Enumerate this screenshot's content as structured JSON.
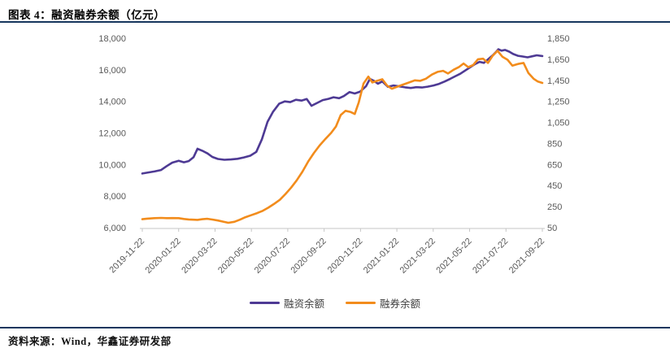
{
  "page": {
    "title": "图表 4：融资融券余额（亿元）",
    "source": "资料来源：Wind，华鑫证券研发部",
    "accent_color": "#17375E"
  },
  "chart_data": {
    "type": "line",
    "title": "融资融券余额（亿元）",
    "grid": false,
    "legend_position": "bottom",
    "axis_label_color": "#595959",
    "axis_line_color": "#C6C6C6",
    "x_tick_labels": [
      "2019-11-22",
      "2020-01-22",
      "2020-03-22",
      "2020-05-22",
      "2020-07-22",
      "2020-09-22",
      "2020-11-22",
      "2021-01-22",
      "2021-03-22",
      "2021-05-22",
      "2021-07-22",
      "2021-09-22"
    ],
    "left_axis": {
      "min": 6000,
      "max": 18000,
      "step": 2000,
      "tick_labels": [
        "18,000",
        "16,000",
        "14,000",
        "12,000",
        "10,000",
        "8,000",
        "6,000"
      ]
    },
    "right_axis": {
      "min": 50,
      "max": 1850,
      "step": 200,
      "tick_labels": [
        "1,850",
        "1,650",
        "1,450",
        "1,250",
        "1,050",
        "850",
        "650",
        "450",
        "250",
        "50"
      ]
    },
    "series": [
      {
        "name": "融资余额",
        "axis": "left",
        "color": "#4E3A94",
        "points": [
          [
            0.0,
            9430
          ],
          [
            0.012,
            9480
          ],
          [
            0.03,
            9560
          ],
          [
            0.047,
            9650
          ],
          [
            0.061,
            9900
          ],
          [
            0.075,
            10120
          ],
          [
            0.091,
            10240
          ],
          [
            0.104,
            10140
          ],
          [
            0.116,
            10220
          ],
          [
            0.128,
            10460
          ],
          [
            0.138,
            11000
          ],
          [
            0.15,
            10870
          ],
          [
            0.163,
            10700
          ],
          [
            0.175,
            10480
          ],
          [
            0.189,
            10350
          ],
          [
            0.205,
            10300
          ],
          [
            0.222,
            10320
          ],
          [
            0.238,
            10360
          ],
          [
            0.254,
            10450
          ],
          [
            0.27,
            10560
          ],
          [
            0.285,
            10800
          ],
          [
            0.299,
            11600
          ],
          [
            0.313,
            12700
          ],
          [
            0.327,
            13350
          ],
          [
            0.342,
            13850
          ],
          [
            0.356,
            14000
          ],
          [
            0.37,
            13950
          ],
          [
            0.384,
            14100
          ],
          [
            0.398,
            14050
          ],
          [
            0.411,
            14150
          ],
          [
            0.423,
            13720
          ],
          [
            0.437,
            13900
          ],
          [
            0.451,
            14080
          ],
          [
            0.465,
            14160
          ],
          [
            0.478,
            14260
          ],
          [
            0.492,
            14200
          ],
          [
            0.504,
            14340
          ],
          [
            0.518,
            14590
          ],
          [
            0.531,
            14500
          ],
          [
            0.545,
            14620
          ],
          [
            0.559,
            14950
          ],
          [
            0.569,
            15420
          ],
          [
            0.579,
            15300
          ],
          [
            0.589,
            15120
          ],
          [
            0.6,
            15260
          ],
          [
            0.614,
            14920
          ],
          [
            0.628,
            15010
          ],
          [
            0.642,
            14950
          ],
          [
            0.657,
            14890
          ],
          [
            0.671,
            14850
          ],
          [
            0.685,
            14900
          ],
          [
            0.699,
            14880
          ],
          [
            0.713,
            14930
          ],
          [
            0.728,
            15010
          ],
          [
            0.742,
            15110
          ],
          [
            0.756,
            15260
          ],
          [
            0.77,
            15430
          ],
          [
            0.783,
            15600
          ],
          [
            0.795,
            15750
          ],
          [
            0.807,
            15950
          ],
          [
            0.819,
            16150
          ],
          [
            0.831,
            16350
          ],
          [
            0.843,
            16500
          ],
          [
            0.854,
            16440
          ],
          [
            0.866,
            16700
          ],
          [
            0.876,
            16920
          ],
          [
            0.884,
            17120
          ],
          [
            0.89,
            17300
          ],
          [
            0.898,
            17210
          ],
          [
            0.907,
            17260
          ],
          [
            0.917,
            17150
          ],
          [
            0.927,
            17000
          ],
          [
            0.939,
            16890
          ],
          [
            0.951,
            16840
          ],
          [
            0.963,
            16790
          ],
          [
            0.974,
            16850
          ],
          [
            0.986,
            16920
          ],
          [
            1.0,
            16870
          ]
        ]
      },
      {
        "name": "融券余额",
        "axis": "right",
        "color": "#F28C1C",
        "points": [
          [
            0.0,
            130
          ],
          [
            0.012,
            136
          ],
          [
            0.03,
            140
          ],
          [
            0.047,
            143
          ],
          [
            0.061,
            140
          ],
          [
            0.075,
            141
          ],
          [
            0.091,
            140
          ],
          [
            0.104,
            133
          ],
          [
            0.116,
            128
          ],
          [
            0.128,
            126
          ],
          [
            0.138,
            124
          ],
          [
            0.15,
            130
          ],
          [
            0.163,
            134
          ],
          [
            0.175,
            127
          ],
          [
            0.189,
            118
          ],
          [
            0.201,
            108
          ],
          [
            0.215,
            96
          ],
          [
            0.23,
            106
          ],
          [
            0.244,
            126
          ],
          [
            0.258,
            150
          ],
          [
            0.272,
            168
          ],
          [
            0.287,
            188
          ],
          [
            0.301,
            210
          ],
          [
            0.315,
            240
          ],
          [
            0.329,
            275
          ],
          [
            0.344,
            315
          ],
          [
            0.358,
            370
          ],
          [
            0.372,
            430
          ],
          [
            0.386,
            500
          ],
          [
            0.4,
            580
          ],
          [
            0.415,
            680
          ],
          [
            0.429,
            760
          ],
          [
            0.443,
            830
          ],
          [
            0.457,
            890
          ],
          [
            0.472,
            950
          ],
          [
            0.484,
            1010
          ],
          [
            0.496,
            1120
          ],
          [
            0.508,
            1160
          ],
          [
            0.52,
            1150
          ],
          [
            0.531,
            1130
          ],
          [
            0.541,
            1240
          ],
          [
            0.553,
            1420
          ],
          [
            0.565,
            1485
          ],
          [
            0.575,
            1430
          ],
          [
            0.587,
            1445
          ],
          [
            0.6,
            1460
          ],
          [
            0.612,
            1400
          ],
          [
            0.624,
            1370
          ],
          [
            0.638,
            1390
          ],
          [
            0.652,
            1410
          ],
          [
            0.667,
            1430
          ],
          [
            0.681,
            1450
          ],
          [
            0.695,
            1445
          ],
          [
            0.709,
            1465
          ],
          [
            0.724,
            1505
          ],
          [
            0.738,
            1530
          ],
          [
            0.752,
            1540
          ],
          [
            0.764,
            1515
          ],
          [
            0.778,
            1550
          ],
          [
            0.791,
            1575
          ],
          [
            0.803,
            1610
          ],
          [
            0.815,
            1575
          ],
          [
            0.827,
            1595
          ],
          [
            0.839,
            1650
          ],
          [
            0.852,
            1655
          ],
          [
            0.864,
            1615
          ],
          [
            0.876,
            1685
          ],
          [
            0.888,
            1730
          ],
          [
            0.9,
            1675
          ],
          [
            0.913,
            1645
          ],
          [
            0.925,
            1590
          ],
          [
            0.939,
            1605
          ],
          [
            0.953,
            1615
          ],
          [
            0.965,
            1520
          ],
          [
            0.978,
            1465
          ],
          [
            0.988,
            1440
          ],
          [
            1.0,
            1425
          ]
        ]
      }
    ]
  }
}
